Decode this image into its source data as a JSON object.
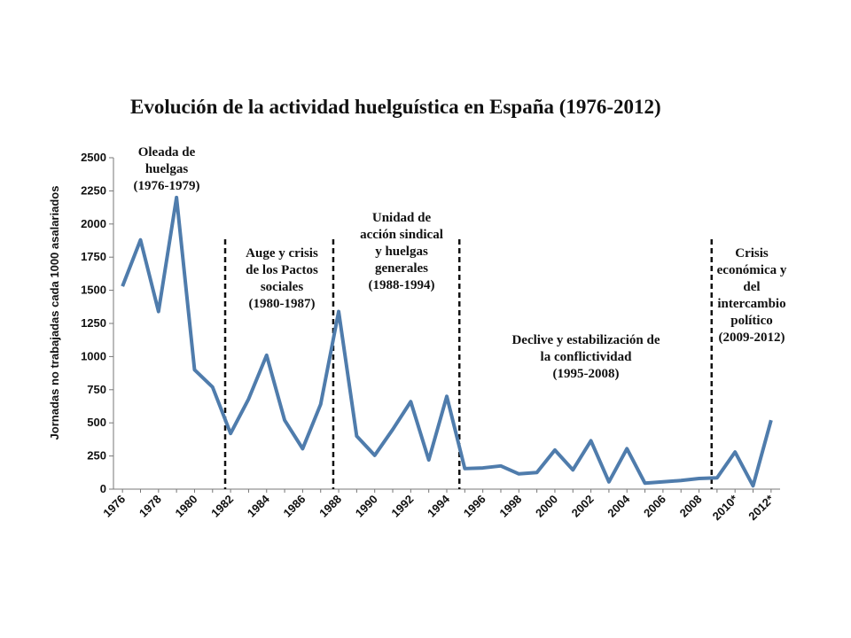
{
  "chart_data": {
    "type": "line",
    "title": "Evolución de la actividad huelguística en España (1976-2012)",
    "ylabel": "Jornadas no trabajadas cada 1000 asalariados",
    "xlabel": "",
    "ylim": [
      0,
      2500
    ],
    "yticks": [
      0,
      250,
      500,
      750,
      1000,
      1250,
      1500,
      1750,
      2000,
      2250,
      2500
    ],
    "x_tick_labels": [
      "1976",
      "1978",
      "1980",
      "1982",
      "1984",
      "1986",
      "1988",
      "1990",
      "1992",
      "1994",
      "1996",
      "1998",
      "2000",
      "2002",
      "2004",
      "2006",
      "2008",
      "2010*",
      "2012*"
    ],
    "grid": false,
    "legend": "none",
    "line_color": "#4f7cac",
    "series": [
      {
        "x": [
          1976,
          1977,
          1978,
          1979,
          1980,
          1981,
          1982,
          1983,
          1984,
          1985,
          1986,
          1987,
          1988,
          1989,
          1990,
          1991,
          1992,
          1993,
          1994,
          1995,
          1996,
          1997,
          1998,
          1999,
          2000,
          2001,
          2002,
          2003,
          2004,
          2005,
          2006,
          2007,
          2008,
          2009,
          2010,
          2011,
          2012
        ],
        "values": [
          1530,
          1880,
          1340,
          2200,
          900,
          770,
          420,
          680,
          1010,
          520,
          305,
          640,
          1340,
          400,
          255,
          450,
          660,
          220,
          700,
          155,
          160,
          175,
          115,
          125,
          295,
          145,
          365,
          55,
          305,
          45,
          55,
          65,
          80,
          85,
          280,
          25,
          520
        ]
      }
    ],
    "periods": [
      {
        "lines": [
          "Oleada de",
          "huelgas",
          "(1976-1979)"
        ]
      },
      {
        "lines": [
          "Auge y crisis",
          "de los Pactos",
          "sociales",
          "(1980-1987)"
        ]
      },
      {
        "lines": [
          "Unidad de",
          "acción sindical",
          "y huelgas",
          "generales",
          "(1988-1994)"
        ]
      },
      {
        "lines": [
          "Declive y estabilización de",
          "la conflictividad",
          "(1995-2008)"
        ]
      },
      {
        "lines": [
          "Crisis",
          "económica y",
          "del",
          "intercambio",
          "político",
          "(2009-2012)"
        ]
      }
    ],
    "period_dividers": [
      1982,
      1988,
      1995,
      2009
    ]
  }
}
